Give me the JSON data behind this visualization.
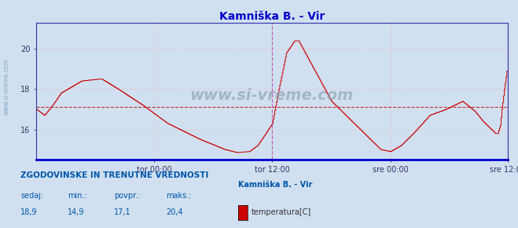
{
  "title": "Kamniška B. - Vir",
  "title_color": "#0000cc",
  "background_color": "#d0e0f0",
  "plot_bg_color": "#d0e0f0",
  "line_color": "#cc0000",
  "grid_color": "#ffaaaa",
  "grid_style": ":",
  "avg_value": 17.1,
  "avg_line_color": "#cc0000",
  "avg_line_style": "--",
  "ylim": [
    14.5,
    21.3
  ],
  "yticks": [
    16,
    18,
    20
  ],
  "x_labels": [
    "tor 00:00",
    "tor 12:00",
    "sre 00:00",
    "sre 12:00"
  ],
  "x_tick_positions": [
    144,
    288,
    432,
    575
  ],
  "vline_positions": [
    288,
    575
  ],
  "vline_color": "#bb66bb",
  "vline_style": "--",
  "watermark": "www.si-vreme.com",
  "watermark_color": "#8899aa",
  "side_label": "www.si-vreme.com",
  "legend_title": "Kamniška B. - Vir",
  "legend_label": "temperatura[C]",
  "legend_color": "#cc0000",
  "stat_label_color": "#0055aa",
  "header_color": "#0055aa",
  "sedaj": "18,9",
  "min_val": "14,9",
  "povpr": "17,1",
  "maks": "20,4",
  "n_points": 576
}
